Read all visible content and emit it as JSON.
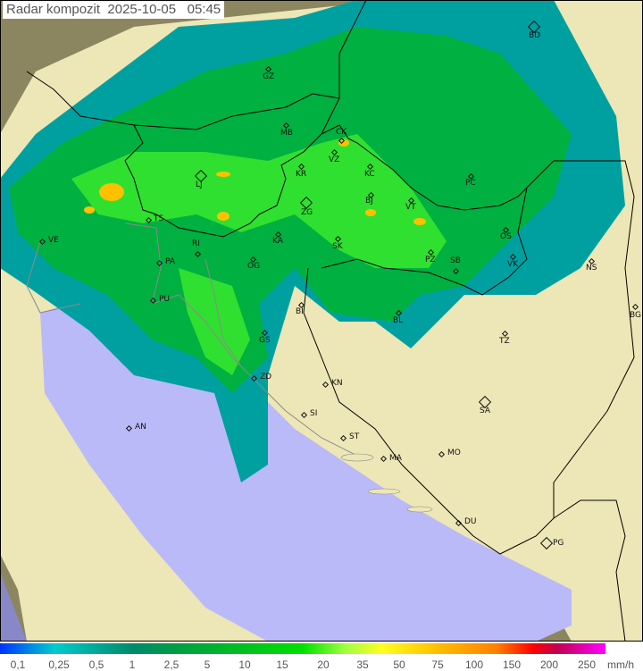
{
  "title": "Radar kompozit  2025-10-05   05:45",
  "colors": {
    "sea": "#babaf8",
    "land": "#ede6b6",
    "outside": "#8c8660",
    "rain_light": "#00a0a0",
    "rain": "#00b040",
    "rain_mid": "#30e030",
    "rain_heavy": "#ffc000",
    "border": "#000000",
    "coast": "#8a8a8a"
  },
  "cities": [
    {
      "code": "GZ",
      "major": false
    },
    {
      "code": "BD",
      "major": true
    },
    {
      "code": "MB",
      "major": false
    },
    {
      "code": "CK",
      "major": false
    },
    {
      "code": "VZ",
      "major": false
    },
    {
      "code": "KR",
      "major": false
    },
    {
      "code": "KC",
      "major": false
    },
    {
      "code": "LJ",
      "major": true
    },
    {
      "code": "ZG",
      "major": true
    },
    {
      "code": "BJ",
      "major": false
    },
    {
      "code": "VT",
      "major": false
    },
    {
      "code": "PC",
      "major": false
    },
    {
      "code": "TS",
      "major": false
    },
    {
      "code": "VE",
      "major": false
    },
    {
      "code": "RI",
      "major": false
    },
    {
      "code": "KA",
      "major": false
    },
    {
      "code": "SK",
      "major": false
    },
    {
      "code": "OS",
      "major": false
    },
    {
      "code": "PA",
      "major": false
    },
    {
      "code": "OG",
      "major": false
    },
    {
      "code": "PZ",
      "major": false
    },
    {
      "code": "SB",
      "major": false
    },
    {
      "code": "VK",
      "major": false
    },
    {
      "code": "NS",
      "major": false
    },
    {
      "code": "PU",
      "major": false
    },
    {
      "code": "BI",
      "major": false
    },
    {
      "code": "BL",
      "major": false
    },
    {
      "code": "BG",
      "major": false
    },
    {
      "code": "TZ",
      "major": false
    },
    {
      "code": "GS",
      "major": false
    },
    {
      "code": "ZD",
      "major": false
    },
    {
      "code": "KN",
      "major": false
    },
    {
      "code": "SA",
      "major": true
    },
    {
      "code": "AN",
      "major": false
    },
    {
      "code": "SI",
      "major": false
    },
    {
      "code": "ST",
      "major": false
    },
    {
      "code": "MA",
      "major": false
    },
    {
      "code": "MO",
      "major": false
    },
    {
      "code": "DU",
      "major": false
    },
    {
      "code": "PG",
      "major": true
    }
  ],
  "legend": {
    "ticks": [
      "0,1",
      "0,25",
      "0,5",
      "1",
      "2,5",
      "5",
      "10",
      "15",
      "20",
      "35",
      "50",
      "75",
      "100",
      "150",
      "200",
      "250"
    ],
    "unit": "mm/h"
  }
}
